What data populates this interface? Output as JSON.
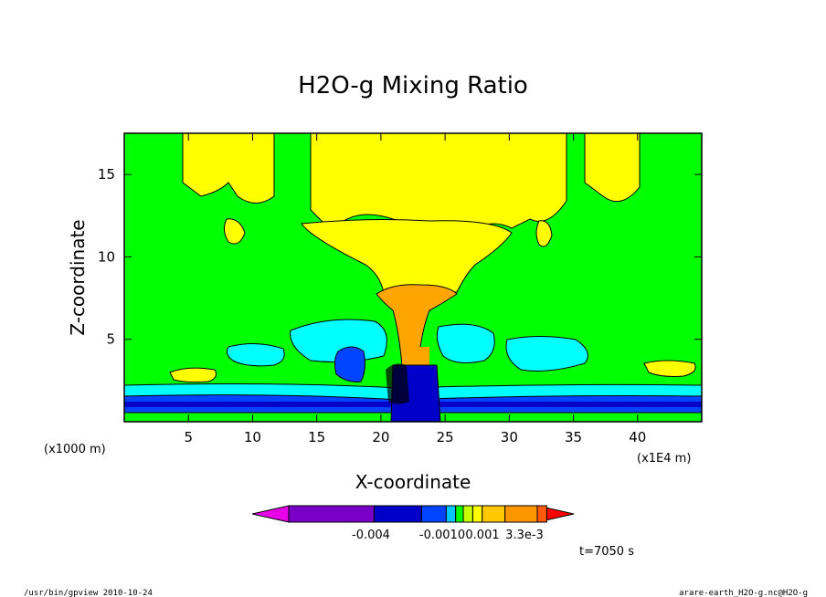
{
  "chart_data": {
    "type": "heatmap",
    "title": "H2O-g Mixing Ratio",
    "xlabel": "X-coordinate",
    "ylabel": "Z-coordinate",
    "x_unit": "(x1E4 m)",
    "y_unit": "(x1000 m)",
    "xlim": [
      0,
      45
    ],
    "ylim": [
      0,
      17.5
    ],
    "x_ticks": [
      5,
      10,
      15,
      20,
      25,
      30,
      35,
      40
    ],
    "y_ticks": [
      5,
      10,
      15
    ],
    "colorbar": {
      "colors": [
        "#e800e8",
        "#7a00c8",
        "#0000c8",
        "#0044ff",
        "#00c8ff",
        "#00ff00",
        "#c8ff00",
        "#ffff00",
        "#ffc800",
        "#ff9600",
        "#ff5a00",
        "#ff0000"
      ],
      "labels": [
        "-0.004",
        "-0.0010",
        "0.001",
        "3.3e-3"
      ]
    },
    "annotation_time": "t=7050 s"
  },
  "footer": {
    "left": "/usr/bin/gpview   2010-10-24",
    "right": "arare-earth_H2O-g.nc@H2O-g"
  },
  "colors": {
    "background": "#00ff00",
    "yellow": "#ffff00",
    "cyan": "#00ffff",
    "blue": "#0044ff",
    "darkblue": "#0000c8",
    "orange": "#ffa500"
  }
}
